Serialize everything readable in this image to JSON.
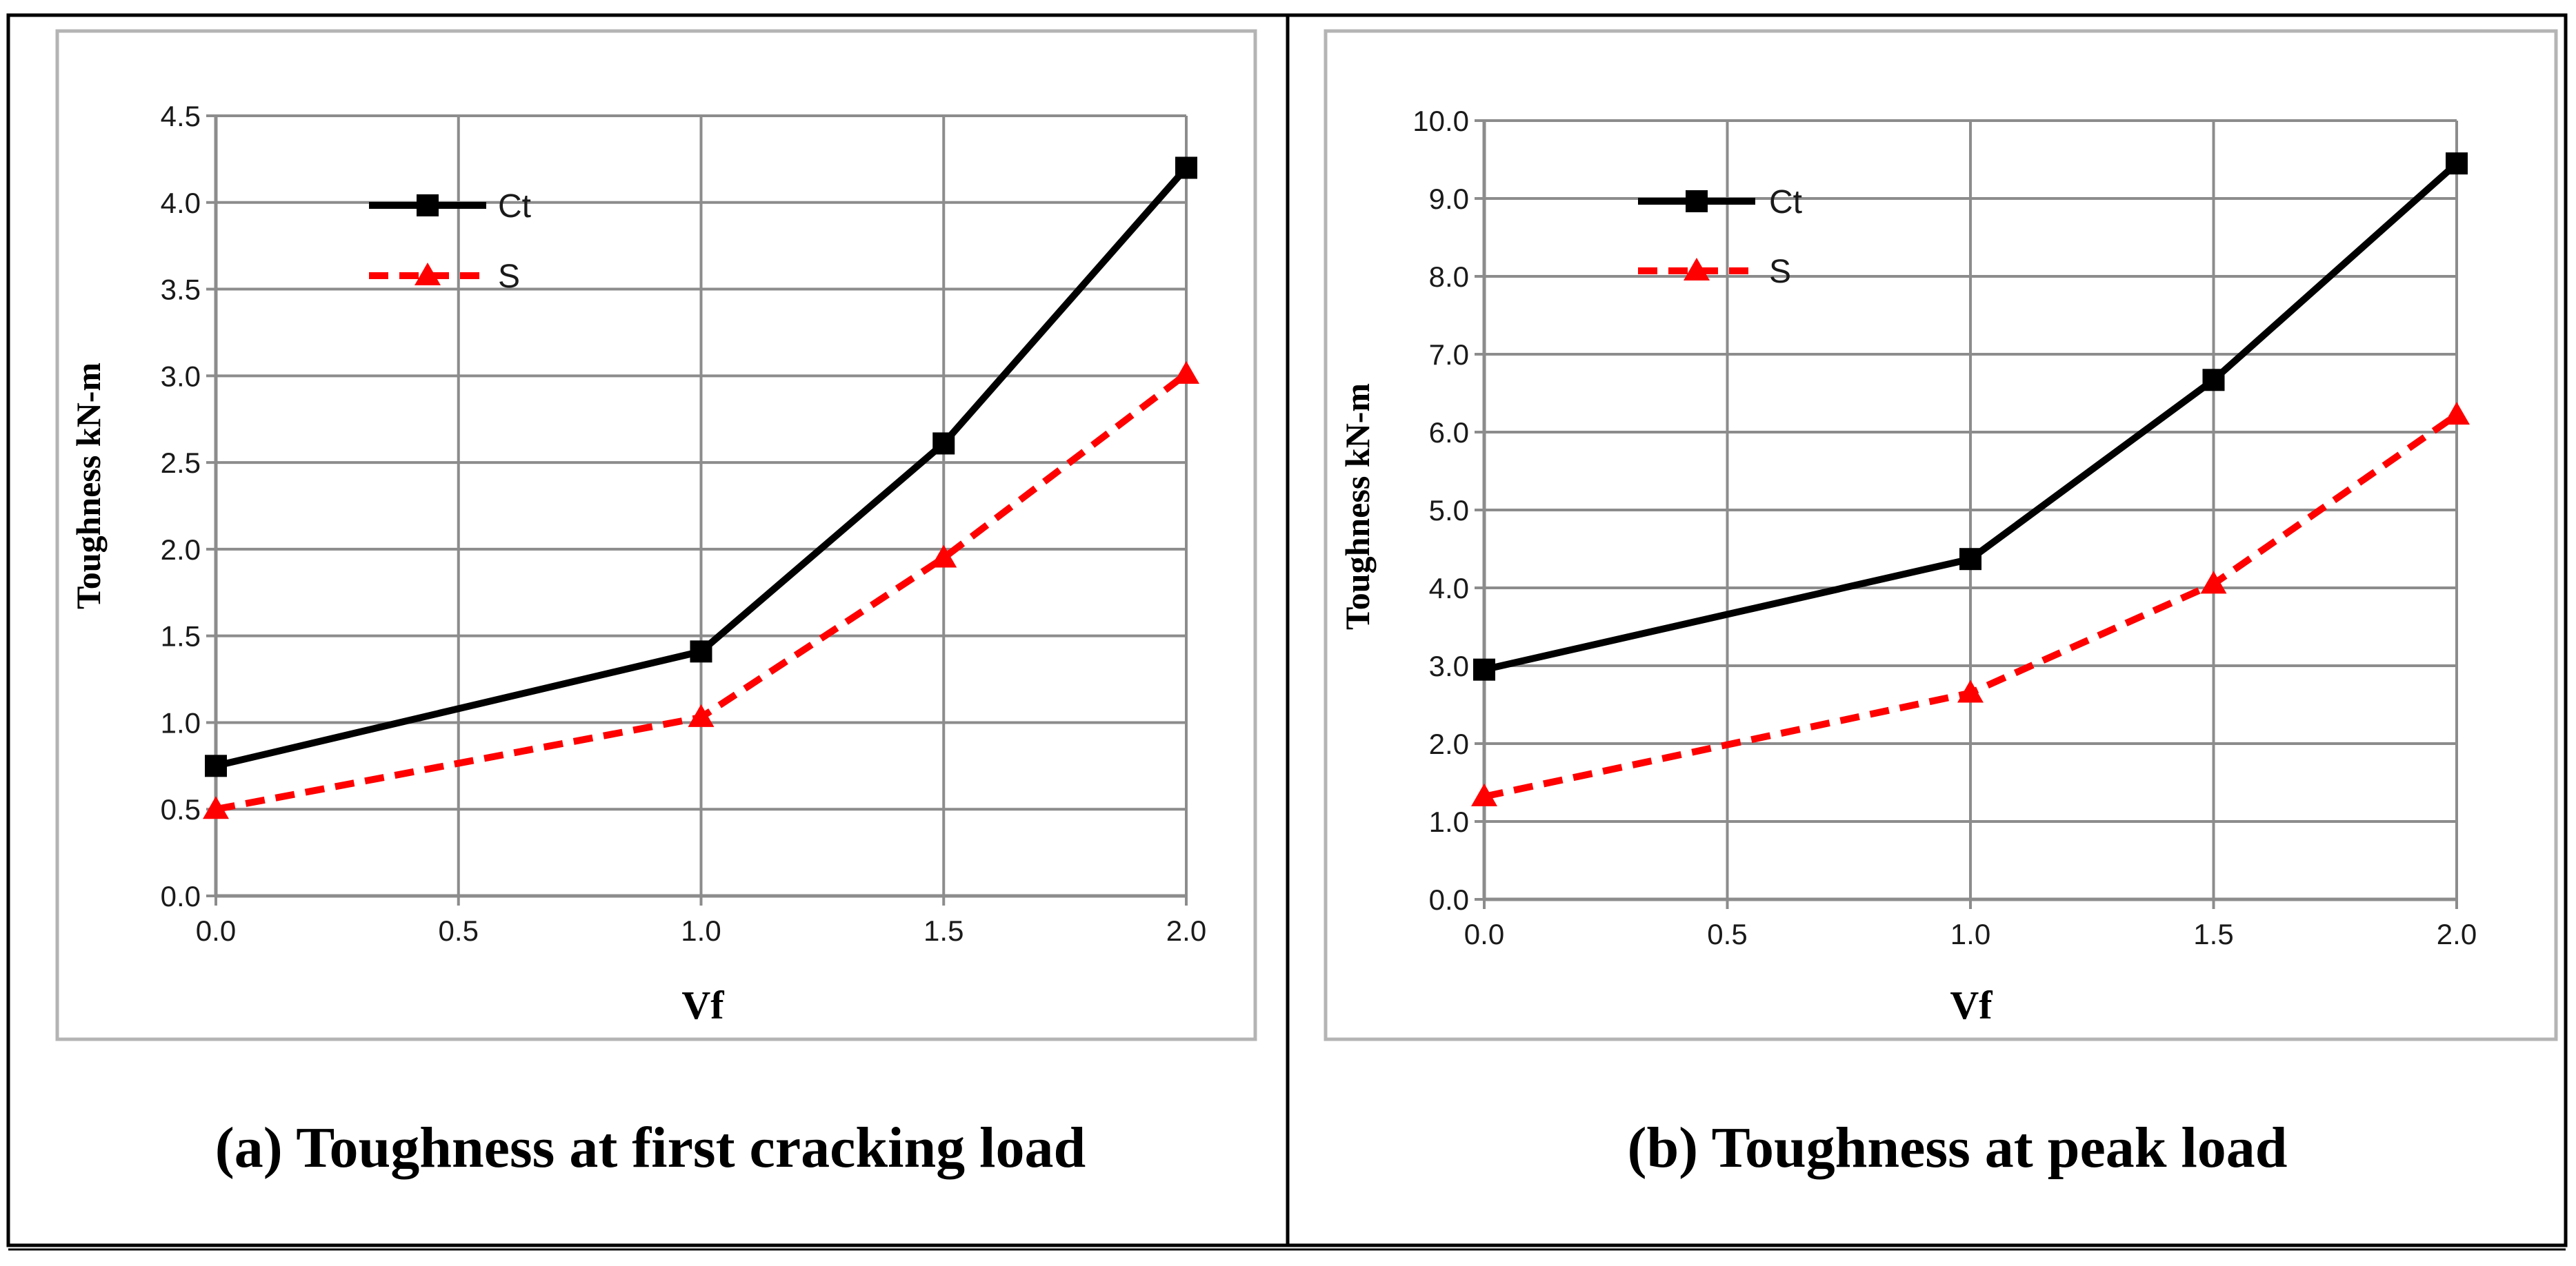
{
  "chart_data": [
    {
      "type": "line",
      "caption": "(a) Toughness at first cracking load",
      "x": [
        0.0,
        1.0,
        1.5,
        2.0
      ],
      "x_ticks": [
        "0.0",
        "0.5",
        "1.0",
        "1.5",
        "2.0"
      ],
      "xlim": [
        0,
        2
      ],
      "xlabel": "Vf",
      "ylabel": "Toughness kN-m",
      "ylim": [
        0,
        4.5
      ],
      "y_ticks": [
        "0.0",
        "0.5",
        "1.0",
        "1.5",
        "2.0",
        "2.5",
        "3.0",
        "3.5",
        "4.0",
        "4.5"
      ],
      "grid": true,
      "legend_position": "top-left",
      "series": [
        {
          "name": "Ct",
          "values": [
            0.75,
            1.41,
            2.61,
            4.2
          ],
          "color": "#000000",
          "style": "solid",
          "marker": "square"
        },
        {
          "name": "S",
          "values": [
            0.5,
            1.03,
            1.95,
            3.01
          ],
          "color": "#ff0000",
          "style": "dashed",
          "marker": "triangle"
        }
      ]
    },
    {
      "type": "line",
      "caption": "(b) Toughness at peak load",
      "x": [
        0.0,
        1.0,
        1.5,
        2.0
      ],
      "x_ticks": [
        "0.0",
        "0.5",
        "1.0",
        "1.5",
        "2.0"
      ],
      "xlim": [
        0,
        2
      ],
      "xlabel": "Vf",
      "ylabel": "Toughness kN-m",
      "ylim": [
        0,
        10
      ],
      "y_ticks": [
        "0.0",
        "1.0",
        "2.0",
        "3.0",
        "4.0",
        "5.0",
        "6.0",
        "7.0",
        "8.0",
        "9.0",
        "10.0"
      ],
      "grid": true,
      "legend_position": "top-left",
      "series": [
        {
          "name": "Ct",
          "values": [
            2.95,
            4.37,
            6.67,
            9.45
          ],
          "color": "#000000",
          "style": "solid",
          "marker": "square"
        },
        {
          "name": "S",
          "values": [
            1.32,
            2.65,
            4.05,
            6.22
          ],
          "color": "#ff0000",
          "style": "dashed",
          "marker": "triangle"
        }
      ]
    }
  ]
}
